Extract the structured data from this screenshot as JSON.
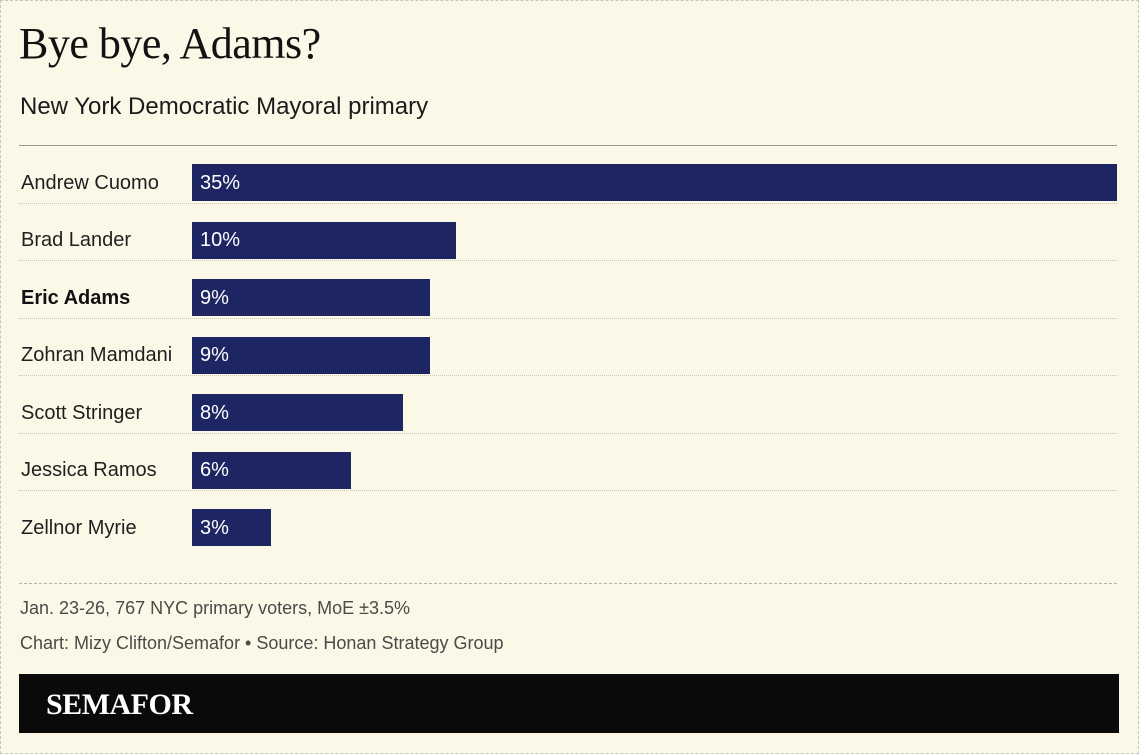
{
  "header": {
    "title": "Bye bye, Adams?",
    "subtitle": "New York Democratic Mayoral primary"
  },
  "chart_data": {
    "type": "bar",
    "orientation": "horizontal",
    "categories": [
      "Andrew Cuomo",
      "Brad Lander",
      "Eric Adams",
      "Zohran Mamdani",
      "Scott Stringer",
      "Jessica Ramos",
      "Zellnor Myrie"
    ],
    "values": [
      35,
      10,
      9,
      9,
      8,
      6,
      3
    ],
    "value_labels": [
      "35%",
      "10%",
      "9%",
      "9%",
      "8%",
      "6%",
      "3%"
    ],
    "highlighted_category": "Eric Adams",
    "unit": "%",
    "xlim": [
      0,
      35
    ],
    "grid": false,
    "bar_color": "#1d2663"
  },
  "notes": {
    "methodology": "Jan. 23-26, 767 NYC primary voters, MoE ±3.5%",
    "credit": "Chart: Mizy Clifton/Semafor • Source: Honan Strategy Group"
  },
  "footer": {
    "logo_text": "SEMAFOR"
  },
  "colors": {
    "background": "#fbf8e8",
    "bar": "#1d2663",
    "footer": "#0a0a0a"
  }
}
